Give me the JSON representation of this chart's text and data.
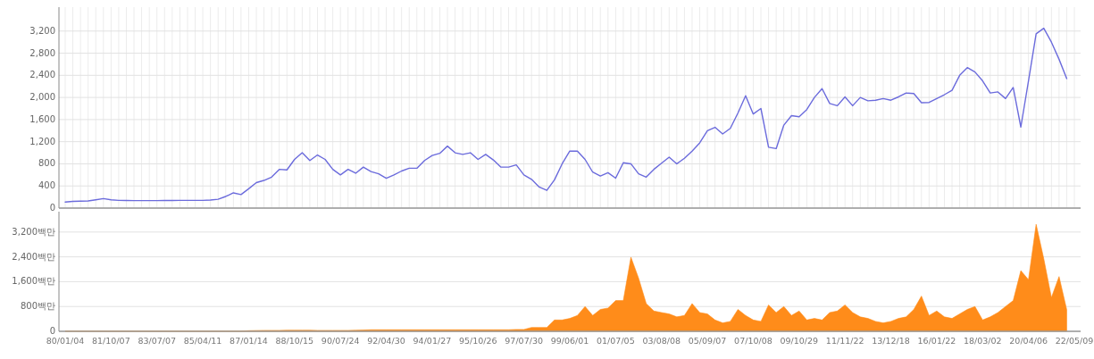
{
  "chart_data": [
    {
      "type": "line",
      "series": [
        {
          "color": "#6b6bdc",
          "values": [
            110,
            120,
            125,
            130,
            150,
            172,
            150,
            140,
            138,
            135,
            135,
            135,
            135,
            138,
            138,
            140,
            140,
            140,
            140,
            145,
            160,
            210,
            275,
            245,
            350,
            460,
            500,
            560,
            700,
            690,
            880,
            1000,
            860,
            960,
            880,
            700,
            600,
            700,
            630,
            740,
            660,
            620,
            540,
            600,
            670,
            720,
            720,
            860,
            950,
            990,
            1120,
            1000,
            970,
            1000,
            880,
            970,
            870,
            740,
            740,
            780,
            600,
            520,
            380,
            320,
            510,
            800,
            1030,
            1030,
            880,
            650,
            580,
            640,
            540,
            820,
            800,
            620,
            560,
            700,
            810,
            920,
            800,
            900,
            1030,
            1180,
            1400,
            1460,
            1340,
            1440,
            1720,
            2030,
            1700,
            1800,
            1100,
            1075,
            1500,
            1670,
            1650,
            1780,
            2000,
            2160,
            1890,
            1850,
            2010,
            1850,
            2000,
            1940,
            1950,
            1980,
            1950,
            2010,
            2080,
            2070,
            1905,
            1910,
            1980,
            2050,
            2130,
            2400,
            2540,
            2460,
            2300,
            2080,
            2100,
            1980,
            2180,
            1465,
            2300,
            3150,
            3250,
            3000,
            2690,
            2340,
            null
          ]
        }
      ],
      "ylim": [
        0,
        3600
      ],
      "yticks": [
        0,
        400,
        800,
        {
          "value": 1200,
          "label": "1,200"
        },
        {
          "value": 1600,
          "label": "1,600"
        },
        {
          "value": 2000,
          "label": "2,000"
        },
        {
          "value": 2400,
          "label": "2,400"
        },
        {
          "value": 2800,
          "label": "2,800"
        },
        {
          "value": 3200,
          "label": "3,200"
        }
      ],
      "grid": true,
      "tick_labels": "y"
    },
    {
      "type": "area",
      "categories": [
        "80/01/04",
        null,
        null,
        null,
        null,
        null,
        "81/10/07",
        null,
        null,
        null,
        null,
        null,
        "83/07/07",
        null,
        null,
        null,
        null,
        null,
        "85/04/11",
        null,
        null,
        null,
        null,
        null,
        "87/01/14",
        null,
        null,
        null,
        null,
        null,
        "88/10/15",
        null,
        null,
        null,
        null,
        null,
        "90/07/24",
        null,
        null,
        null,
        null,
        null,
        "92/04/30",
        null,
        null,
        null,
        null,
        null,
        "94/01/27",
        null,
        null,
        null,
        null,
        null,
        "95/10/26",
        null,
        null,
        null,
        null,
        null,
        "97/07/30",
        null,
        null,
        null,
        null,
        null,
        "99/06/01",
        null,
        null,
        null,
        null,
        null,
        "01/07/05",
        null,
        null,
        null,
        null,
        null,
        "03/08/08",
        null,
        null,
        null,
        null,
        null,
        "05/09/07",
        null,
        null,
        null,
        null,
        null,
        "07/10/08",
        null,
        null,
        null,
        null,
        null,
        "09/10/29",
        null,
        null,
        null,
        null,
        null,
        "11/11/22",
        null,
        null,
        null,
        null,
        null,
        "13/12/18",
        null,
        null,
        null,
        null,
        null,
        "16/01/22",
        null,
        null,
        null,
        null,
        null,
        "18/03/02",
        null,
        null,
        null,
        null,
        null,
        "20/04/06",
        null,
        null,
        null,
        null,
        null,
        "22/05/09"
      ],
      "series": [
        {
          "color": "#ff8c1a",
          "values": [
            5,
            5,
            5,
            5,
            5,
            5,
            5,
            5,
            5,
            5,
            5,
            5,
            5,
            5,
            5,
            5,
            5,
            5,
            5,
            5,
            5,
            5,
            5,
            5,
            20,
            25,
            30,
            30,
            30,
            35,
            35,
            35,
            35,
            30,
            30,
            30,
            30,
            30,
            35,
            40,
            50,
            50,
            50,
            50,
            50,
            50,
            50,
            50,
            50,
            50,
            50,
            50,
            50,
            50,
            50,
            50,
            50,
            50,
            50,
            60,
            60,
            125,
            125,
            125,
            365,
            365,
            415,
            510,
            800,
            510,
            705,
            750,
            990,
            990,
            2390,
            1715,
            895,
            655,
            605,
            560,
            465,
            510,
            895,
            605,
            560,
            365,
            270,
            320,
            705,
            510,
            365,
            320,
            850,
            605,
            800,
            510,
            655,
            365,
            415,
            365,
            605,
            655,
            850,
            605,
            465,
            415,
            320,
            270,
            320,
            415,
            465,
            705,
            1135,
            510,
            655,
            465,
            415,
            560,
            705,
            800,
            365,
            465,
            605,
            800,
            990,
            1955,
            1665,
            3450,
            2340,
            1090,
            1765,
            700,
            null
          ]
        }
      ],
      "ylim": [
        0,
        3800
      ],
      "yticks": [
        0,
        {
          "value": 800,
          "label": "800백만"
        },
        {
          "value": 1600,
          "label": "1,600백만"
        },
        {
          "value": 2400,
          "label": "2,400백만"
        },
        {
          "value": 3200,
          "label": "3,200백만"
        }
      ],
      "grid": "y"
    }
  ]
}
